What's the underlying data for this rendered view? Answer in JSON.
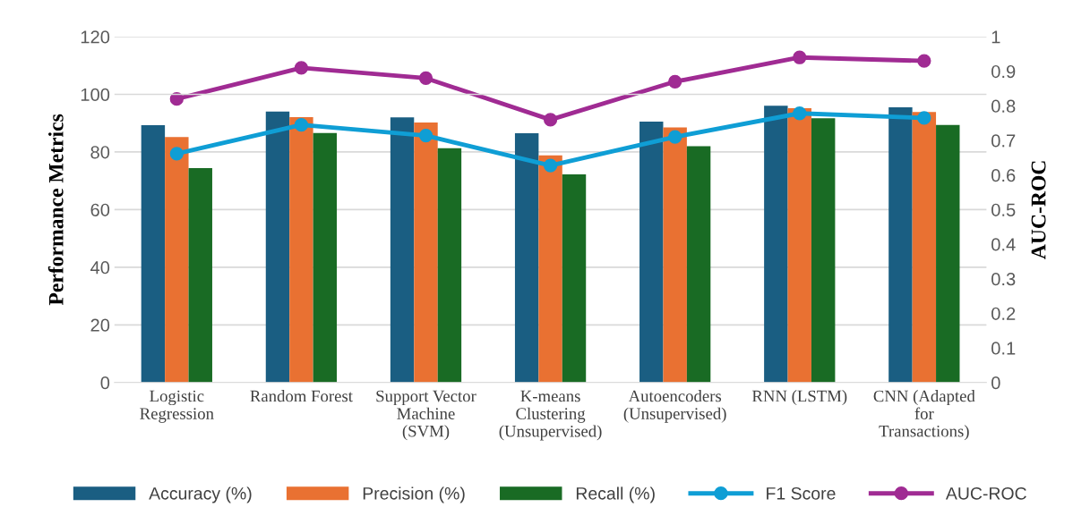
{
  "chart_data": {
    "type": "bar",
    "ylabel": "Performance Metrics",
    "y2label": "AUC-ROC",
    "categories": [
      "Logistic\nRegression",
      "Random Forest",
      "Support Vector\nMachine\n(SVM)",
      "K-means\nClustering\n(Unsupervised)",
      "Autoencoders\n(Unsupervised)",
      "RNN (LSTM)",
      "CNN (Adapted\nfor\nTransactions)"
    ],
    "series": [
      {
        "name": "Accuracy (%)",
        "color": "#1a5e82",
        "values": [
          89.3,
          94.0,
          92.0,
          86.5,
          90.5,
          96.0,
          95.5
        ]
      },
      {
        "name": "Precision (%)",
        "color": "#e97132",
        "values": [
          85.2,
          92.1,
          90.2,
          78.8,
          88.5,
          95.2,
          93.9
        ]
      },
      {
        "name": "Recall (%)",
        "color": "#196b24",
        "values": [
          74.4,
          86.6,
          81.3,
          72.2,
          82.0,
          91.7,
          89.4
        ]
      },
      {
        "name": "F1 Score",
        "type": "line",
        "color": "#0f9ed5",
        "marker": "circle",
        "values": [
          79.4,
          89.4,
          85.7,
          75.3,
          85.2,
          93.4,
          91.8
        ]
      },
      {
        "name": "AUC-ROC",
        "type": "line",
        "axis": "y2",
        "color": "#a02b93",
        "marker": "circle",
        "values": [
          0.82,
          0.91,
          0.88,
          0.76,
          0.87,
          0.94,
          0.93
        ]
      }
    ],
    "ylim": [
      0,
      120
    ],
    "yticks": [
      0,
      20,
      40,
      60,
      80,
      100,
      120
    ],
    "y2lim": [
      0,
      1
    ],
    "y2ticks": [
      0,
      0.1,
      0.2,
      0.3,
      0.4,
      0.5,
      0.6,
      0.7,
      0.8,
      0.9,
      1
    ],
    "grid": "y",
    "legend": "bottom"
  }
}
